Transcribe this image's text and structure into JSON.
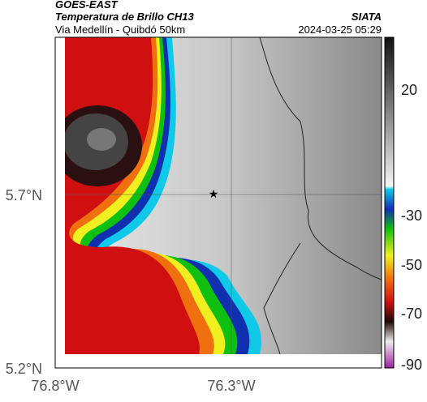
{
  "header": {
    "title": "GOES-EAST",
    "subtitle": "Temperatura de Brillo CH13",
    "source": "SIATA",
    "region": "Via Medellín - Quibdó 50km",
    "timestamp": "2024-03-25 05:29"
  },
  "map": {
    "lat_labels": [
      "5.7°N",
      "5.2°N"
    ],
    "lon_labels": [
      "76.8°W",
      "76.3°W"
    ]
  },
  "colorbar": {
    "labels": [
      "20",
      "-30",
      "-50",
      "-70",
      "-90"
    ]
  }
}
